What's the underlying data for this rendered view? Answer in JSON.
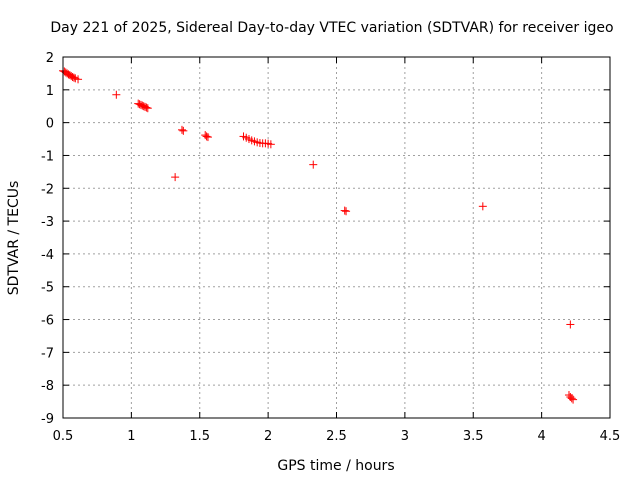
{
  "chart_data": {
    "type": "scatter",
    "title": "Day 221 of 2025, Sidereal Day-to-day VTEC variation (SDTVAR) for receiver igeo",
    "xlabel": "GPS time / hours",
    "ylabel": "SDTVAR / TECUs",
    "xlim": [
      0.5,
      4.5
    ],
    "ylim": [
      -9,
      2
    ],
    "xticks": [
      0.5,
      1,
      1.5,
      2,
      2.5,
      3,
      3.5,
      4,
      4.5
    ],
    "xtick_labels": [
      "0.5",
      "1",
      "1.5",
      "2",
      "2.5",
      "3",
      "3.5",
      "4",
      "4.5"
    ],
    "yticks": [
      2,
      1,
      0,
      -1,
      -2,
      -3,
      -4,
      -5,
      -6,
      -7,
      -8,
      -9
    ],
    "ytick_labels": [
      "2",
      "1",
      "0",
      "-1",
      "-2",
      "-3",
      "-4",
      "-5",
      "-6",
      "-7",
      "-8",
      "-9"
    ],
    "grid": true,
    "marker": "plus",
    "color": "#ff0000",
    "series": [
      {
        "points": [
          [
            0.5,
            1.58
          ],
          [
            0.51,
            1.56
          ],
          [
            0.52,
            1.53
          ],
          [
            0.53,
            1.5
          ],
          [
            0.54,
            1.47
          ],
          [
            0.55,
            1.45
          ],
          [
            0.56,
            1.42
          ],
          [
            0.57,
            1.39
          ],
          [
            0.58,
            1.37
          ],
          [
            0.59,
            1.35
          ],
          [
            0.61,
            1.32
          ],
          [
            0.89,
            0.85
          ],
          [
            1.05,
            0.58
          ],
          [
            1.06,
            0.56
          ],
          [
            1.07,
            0.54
          ],
          [
            1.08,
            0.52
          ],
          [
            1.09,
            0.5
          ],
          [
            1.1,
            0.48
          ],
          [
            1.11,
            0.46
          ],
          [
            1.12,
            0.44
          ],
          [
            1.32,
            -1.66
          ],
          [
            1.37,
            -0.22
          ],
          [
            1.38,
            -0.25
          ],
          [
            1.54,
            -0.38
          ],
          [
            1.55,
            -0.42
          ],
          [
            1.56,
            -0.44
          ],
          [
            1.82,
            -0.42
          ],
          [
            1.84,
            -0.46
          ],
          [
            1.86,
            -0.5
          ],
          [
            1.88,
            -0.54
          ],
          [
            1.9,
            -0.57
          ],
          [
            1.92,
            -0.6
          ],
          [
            1.94,
            -0.62
          ],
          [
            1.96,
            -0.63
          ],
          [
            1.98,
            -0.63
          ],
          [
            2.0,
            -0.64
          ],
          [
            2.02,
            -0.66
          ],
          [
            2.33,
            -1.28
          ],
          [
            2.56,
            -2.68
          ],
          [
            2.57,
            -2.7
          ],
          [
            3.57,
            -2.55
          ],
          [
            4.21,
            -6.15
          ],
          [
            4.2,
            -8.3
          ],
          [
            4.21,
            -8.36
          ],
          [
            4.22,
            -8.4
          ],
          [
            4.23,
            -8.44
          ]
        ]
      }
    ]
  }
}
